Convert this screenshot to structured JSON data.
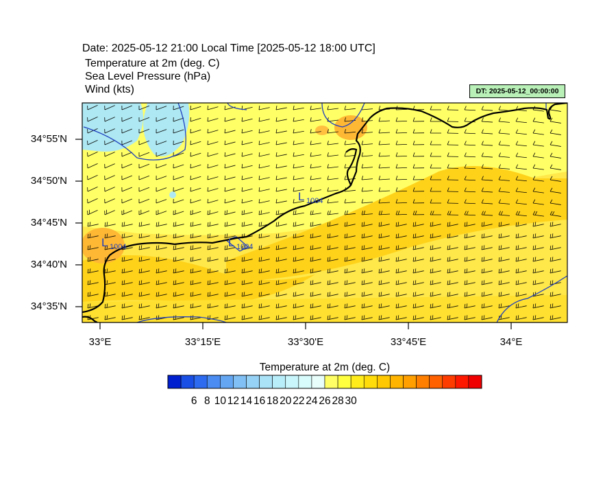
{
  "header": {
    "date_line": "Date: 2025-05-12  21:00 Local Time [2025-05-12  18:00 UTC]",
    "variables": [
      "Temperature at 2m   (deg. C)",
      "Sea Level Pressure   (hPa)",
      "Wind   (kts)"
    ],
    "dt_badge": "DT: 2025-05-12_00:00:00"
  },
  "map": {
    "lat_labels": [
      "34°55'N",
      "34°50'N",
      "34°45'N",
      "34°40'N",
      "34°35'N"
    ],
    "lon_labels": [
      "33°E",
      "33°15'E",
      "33°30'E",
      "33°45'E",
      "34°E"
    ],
    "pressure_lows": [
      {
        "label": "L",
        "value": "1004"
      },
      {
        "label": "L",
        "value": "1004"
      },
      {
        "label": "L",
        "value": "1004"
      }
    ],
    "colors": {
      "cool_cyan": "#aee8f2",
      "pale_yellow": "#ffff66",
      "yellow": "#ffe84a",
      "gold": "#ffd21a",
      "orange": "#ffb833",
      "coast": "#000000",
      "isobar": "#1f3fbf"
    }
  },
  "colorbar": {
    "title": "Temperature at 2m  (deg. C)",
    "tick_labels": [
      "6",
      "8",
      "10",
      "12",
      "14",
      "16",
      "18",
      "20",
      "22",
      "24",
      "26",
      "28",
      "30"
    ],
    "colors": [
      "#0020d0",
      "#1a4fe6",
      "#2d6cf0",
      "#4a8cf2",
      "#65a6f2",
      "#80c0f4",
      "#96d2f6",
      "#aae2f8",
      "#b8eefa",
      "#c8f6fc",
      "#d8fcfc",
      "#e8fefa",
      "#ffff66",
      "#ffff40",
      "#ffec1a",
      "#ffdc0a",
      "#ffc800",
      "#ffb400",
      "#ffa000",
      "#ff8000",
      "#ff6000",
      "#ff3c00",
      "#ff1800",
      "#f00000"
    ]
  }
}
